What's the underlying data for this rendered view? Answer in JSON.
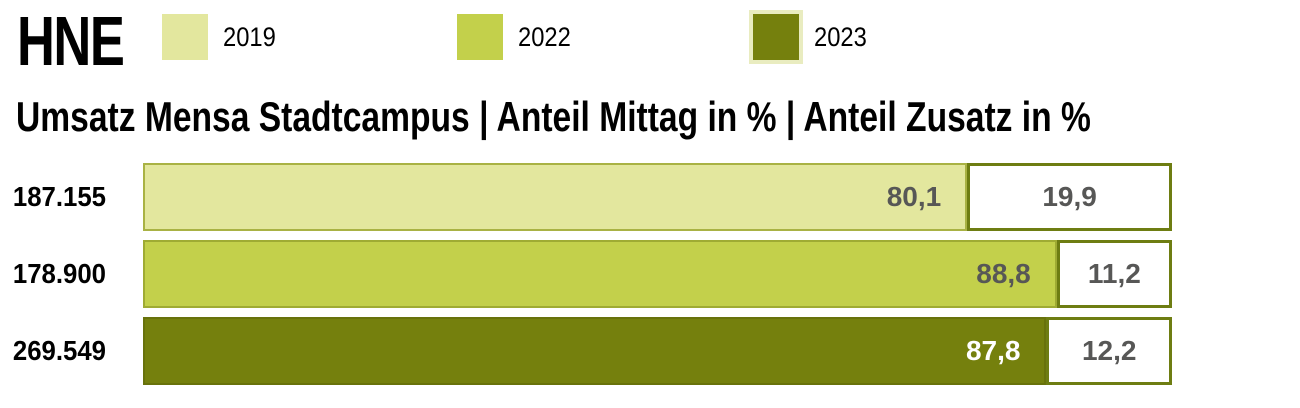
{
  "logo": {
    "text": "HNE"
  },
  "legend": {
    "items": [
      {
        "label": "2019",
        "color": "#e3e79e"
      },
      {
        "label": "2022",
        "color": "#c3d04b"
      },
      {
        "label": "2023",
        "color": "#75800d",
        "outline": "#e9ecc0"
      }
    ]
  },
  "title": "Umsatz Mensa Stadtcampus | Anteil Mittag in % | Anteil Zusatz in %",
  "chart_data": {
    "type": "bar",
    "orientation": "horizontal",
    "stacked": true,
    "title": "Umsatz Mensa Stadtcampus | Anteil Mittag in % | Anteil Zusatz in %",
    "categories": [
      "2019",
      "2022",
      "2023"
    ],
    "row_axis_labels": [
      "187.155",
      "178.900",
      "269.549"
    ],
    "series": [
      {
        "name": "Anteil Mittag in %",
        "values": [
          80.1,
          88.8,
          87.8
        ]
      },
      {
        "name": "Anteil Zusatz in %",
        "values": [
          19.9,
          11.2,
          12.2
        ]
      }
    ],
    "xlim": [
      0,
      100
    ],
    "grid": false,
    "legend_position": "top",
    "rows": [
      {
        "year": "2019",
        "umsatz": "187.155",
        "mittag_pct": 80.1,
        "mittag_label": "80,1",
        "zusatz_pct": 19.9,
        "zusatz_label": "19,9",
        "fill": "#e3e79e",
        "border": "#a9b244",
        "value_color": "#575756"
      },
      {
        "year": "2022",
        "umsatz": "178.900",
        "mittag_pct": 88.8,
        "mittag_label": "88,8",
        "zusatz_pct": 11.2,
        "zusatz_label": "11,2",
        "fill": "#c3d04b",
        "border": "#9fab33",
        "value_color": "#575756"
      },
      {
        "year": "2023",
        "umsatz": "269.549",
        "mittag_pct": 87.8,
        "mittag_label": "87,8",
        "zusatz_pct": 12.2,
        "zusatz_label": "12,2",
        "fill": "#75800d",
        "border": "#68720b",
        "value_color": "#ffffff"
      }
    ]
  },
  "colors": {
    "zusatz_border": "#6e7d12",
    "zusatz_fill": "#ffffff",
    "value_text": "#575756",
    "label_text": "#000000"
  }
}
